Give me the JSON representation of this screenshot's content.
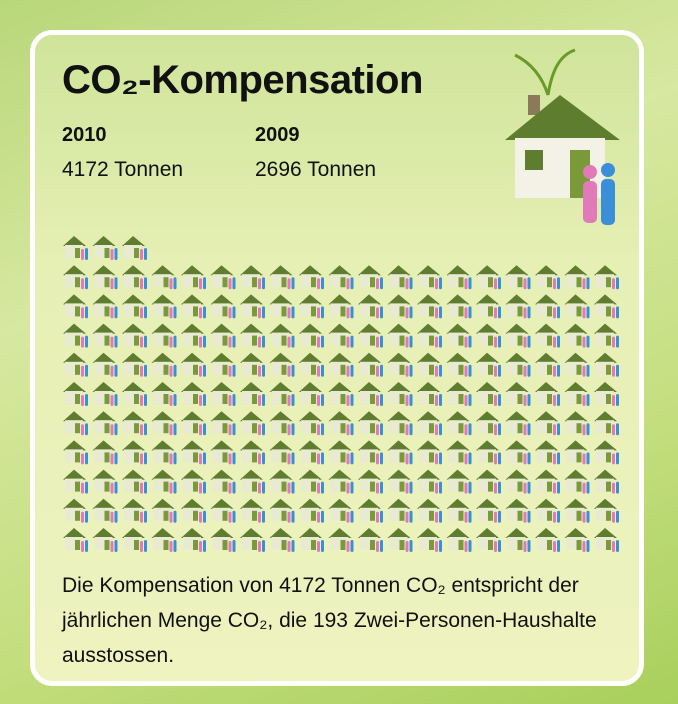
{
  "header": {
    "title": "CO₂-Kompensation"
  },
  "years": [
    {
      "year": "2010",
      "amount": "4172 Tonnen"
    },
    {
      "year": "2009",
      "amount": "2696 Tonnen"
    }
  ],
  "caption": {
    "before": "Die Kompensation von 4172 Tonnen CO₂ entspricht der jährlichen Menge CO₂, die",
    "households": 193,
    "after": "Zwei-Personen-Haushalte ausstossen."
  }
}
